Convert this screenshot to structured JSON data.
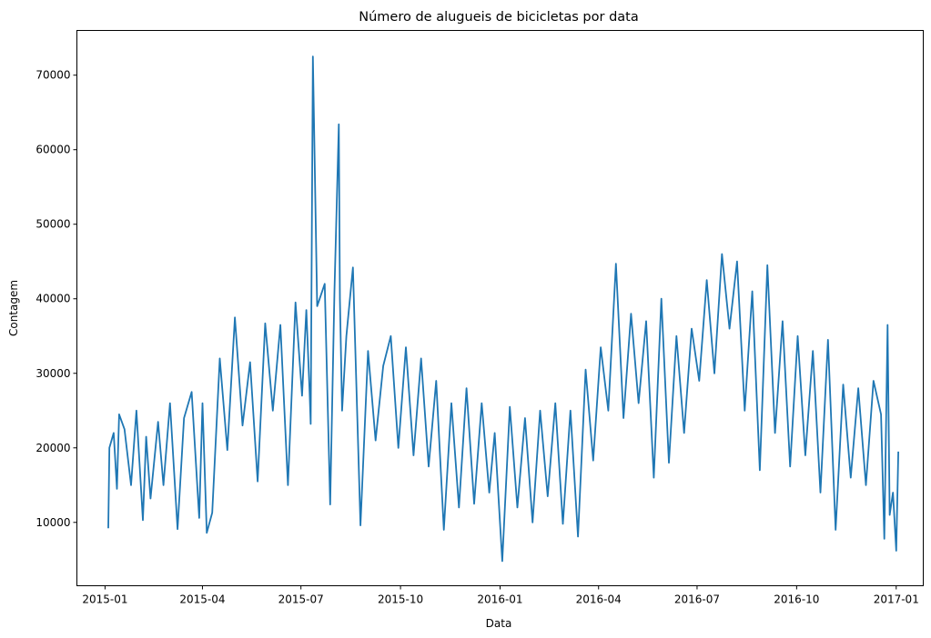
{
  "chart_data": {
    "type": "line",
    "title": "Número de alugueis de bicicletas por data",
    "xlabel": "Data",
    "ylabel": "Contagem",
    "xlim": [
      "2014-12-06",
      "2017-01-26"
    ],
    "ylim": [
      1500,
      76000
    ],
    "grid": false,
    "x_ticks": [
      "2015-01",
      "2015-04",
      "2015-07",
      "2015-10",
      "2016-01",
      "2016-04",
      "2016-07",
      "2016-10",
      "2017-01"
    ],
    "y_ticks": [
      10000,
      20000,
      30000,
      40000,
      50000,
      60000,
      70000
    ],
    "series": [
      {
        "color": "#1f77b4",
        "x": [
          "2015-01-04",
          "2015-01-05",
          "2015-01-09",
          "2015-01-12",
          "2015-01-14",
          "2015-01-19",
          "2015-01-25",
          "2015-01-30",
          "2015-02-05",
          "2015-02-08",
          "2015-02-12",
          "2015-02-19",
          "2015-02-24",
          "2015-03-02",
          "2015-03-09",
          "2015-03-15",
          "2015-03-22",
          "2015-03-29",
          "2015-04-01",
          "2015-04-05",
          "2015-04-10",
          "2015-04-17",
          "2015-04-24",
          "2015-05-01",
          "2015-05-08",
          "2015-05-15",
          "2015-05-22",
          "2015-05-29",
          "2015-06-05",
          "2015-06-12",
          "2015-06-19",
          "2015-06-26",
          "2015-07-02",
          "2015-07-06",
          "2015-07-09",
          "2015-07-10",
          "2015-07-12",
          "2015-07-16",
          "2015-07-23",
          "2015-07-28",
          "2015-08-01",
          "2015-08-05",
          "2015-08-06",
          "2015-08-08",
          "2015-08-12",
          "2015-08-18",
          "2015-08-25",
          "2015-09-01",
          "2015-09-08",
          "2015-09-15",
          "2015-09-22",
          "2015-09-29",
          "2015-10-06",
          "2015-10-13",
          "2015-10-20",
          "2015-10-27",
          "2015-11-03",
          "2015-11-10",
          "2015-11-17",
          "2015-11-24",
          "2015-12-01",
          "2015-12-08",
          "2015-12-15",
          "2015-12-22",
          "2015-12-27",
          "2016-01-03",
          "2016-01-10",
          "2016-01-17",
          "2016-01-24",
          "2016-01-31",
          "2016-02-07",
          "2016-02-14",
          "2016-02-21",
          "2016-02-28",
          "2016-03-06",
          "2016-03-13",
          "2016-03-20",
          "2016-03-27",
          "2016-04-03",
          "2016-04-10",
          "2016-04-17",
          "2016-04-24",
          "2016-05-01",
          "2016-05-08",
          "2016-05-15",
          "2016-05-22",
          "2016-05-29",
          "2016-06-05",
          "2016-06-12",
          "2016-06-19",
          "2016-06-26",
          "2016-07-03",
          "2016-07-10",
          "2016-07-17",
          "2016-07-24",
          "2016-07-31",
          "2016-08-07",
          "2016-08-14",
          "2016-08-21",
          "2016-08-28",
          "2016-09-04",
          "2016-09-11",
          "2016-09-18",
          "2016-09-25",
          "2016-10-02",
          "2016-10-09",
          "2016-10-16",
          "2016-10-23",
          "2016-10-30",
          "2016-11-06",
          "2016-11-13",
          "2016-11-20",
          "2016-11-27",
          "2016-12-04",
          "2016-12-11",
          "2016-12-18",
          "2016-12-21",
          "2016-12-24",
          "2016-12-26",
          "2016-12-29",
          "2017-01-01",
          "2017-01-03"
        ],
        "y": [
          9200,
          20000,
          22000,
          14500,
          24500,
          22500,
          15000,
          25000,
          10300,
          21500,
          13200,
          23500,
          15000,
          26000,
          9100,
          24000,
          27500,
          10600,
          26000,
          8600,
          11300,
          32000,
          19700,
          37500,
          23000,
          31500,
          15500,
          36700,
          25000,
          36500,
          15000,
          39500,
          27000,
          38500,
          27500,
          23200,
          72500,
          39000,
          42000,
          12400,
          41000,
          63400,
          40000,
          25000,
          35000,
          44200,
          9600,
          33000,
          21000,
          31000,
          35000,
          20000,
          33500,
          19000,
          32000,
          17500,
          29000,
          9000,
          26000,
          12000,
          28000,
          12500,
          26000,
          14000,
          22000,
          4800,
          25500,
          12000,
          24000,
          10000,
          25000,
          13500,
          26000,
          9800,
          25000,
          8100,
          30500,
          18300,
          33500,
          25000,
          44700,
          24000,
          38000,
          26000,
          37000,
          16000,
          40000,
          18000,
          35000,
          22000,
          36000,
          29000,
          42500,
          30000,
          46000,
          36000,
          45000,
          25000,
          41000,
          17000,
          44500,
          22000,
          37000,
          17500,
          35000,
          19000,
          33000,
          14000,
          34500,
          9000,
          28500,
          16000,
          28000,
          15000,
          29000,
          24500,
          7800,
          36500,
          11000,
          14000,
          6200,
          19500
        ]
      }
    ]
  }
}
